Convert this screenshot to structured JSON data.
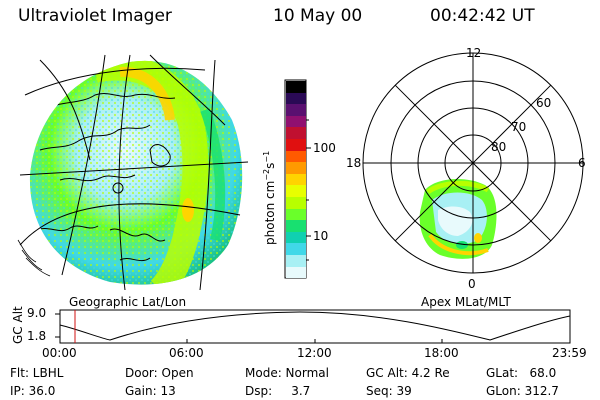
{
  "header": {
    "title": "Ultraviolet Imager",
    "date": "10 May 00",
    "time": "00:42:42 UT"
  },
  "left_panel": {
    "label": "Geographic Lat/Lon"
  },
  "colorbar": {
    "unit_label": "photon cm",
    "unit_exp": "−2",
    "unit_mid": "s",
    "unit_exp2": "−1",
    "ticks": [
      "100",
      "10"
    ],
    "colors": [
      "#000000",
      "#2a0a55",
      "#5a1070",
      "#901070",
      "#c01030",
      "#e01010",
      "#ff5a00",
      "#ff9a00",
      "#ffd400",
      "#e8ff00",
      "#b8ff00",
      "#6aff2a",
      "#18e070",
      "#10d0b0",
      "#40d8e8",
      "#a8f0f4",
      "#e8fafc"
    ]
  },
  "polar_plot": {
    "label": "Apex MLat/MLT",
    "mlt_labels": {
      "top": "12",
      "left": "18",
      "right": "6",
      "bottom": "0"
    },
    "lat_labels": [
      "60",
      "70",
      "80"
    ]
  },
  "altitude_plot": {
    "ylabel": "GC Alt",
    "yticks": [
      "9.0",
      "1.8"
    ],
    "xticks": [
      "00:00",
      "06:00",
      "12:00",
      "18:00",
      "23:59"
    ],
    "marker_time": "00:42:42"
  },
  "info": {
    "flt": "Flt: LBHL",
    "ip": "IP: 36.0",
    "door": "Door: Open",
    "gain": "Gain: 13",
    "mode": "Mode: Normal",
    "dsp": "Dsp:     3.7",
    "gc_alt": "GC Alt: 4.2 Re",
    "seq": "Seq: 39",
    "glat": "GLat:   68.0",
    "glon": "GLon: 312.7"
  }
}
